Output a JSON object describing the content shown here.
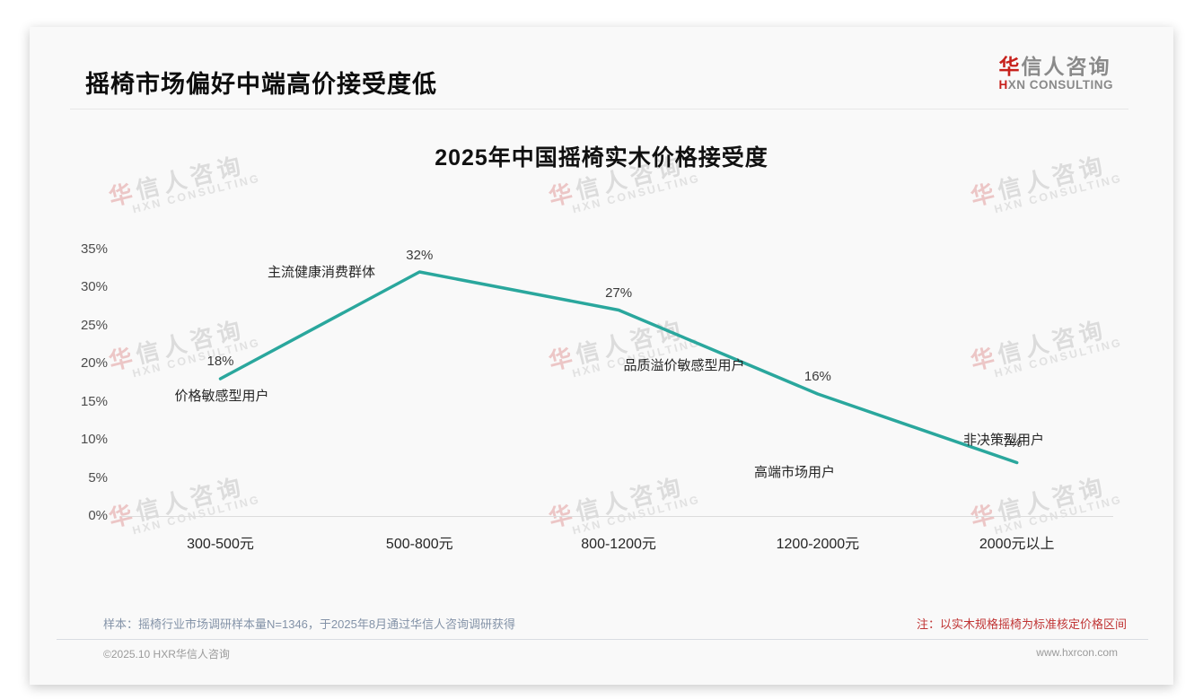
{
  "page": {
    "title": "摇椅市场偏好中端高价接受度低",
    "logo": {
      "cn_first": "华",
      "cn_rest": "信人咨询",
      "en_first": "H",
      "en_rest": "XN CONSULTING"
    },
    "watermark": {
      "cn_first": "华",
      "cn_rest": "信人咨询",
      "en": "HXN CONSULTING"
    },
    "footer": {
      "sample_note": "样本：摇椅行业市场调研样本量N=1346，于2025年8月通过华信人咨询调研获得",
      "price_note": "注：以实木规格摇椅为标准核定价格区间",
      "copyright": "©2025.10 HXR华信人咨询",
      "website": "www.hxrcon.com"
    },
    "colors": {
      "brand_red": "#c7211c",
      "note_red": "#c03434",
      "line_teal": "#2aa79d"
    }
  },
  "chart_data": {
    "type": "line",
    "title": "2025年中国摇椅实木价格接受度",
    "categories": [
      "300-500元",
      "500-800元",
      "800-1200元",
      "1200-2000元",
      "2000元以上"
    ],
    "values": [
      18,
      32,
      27,
      16,
      7
    ],
    "value_labels": [
      "18%",
      "32%",
      "27%",
      "16%",
      "7%"
    ],
    "annotations": [
      "价格敏感型用户",
      "主流健康消费群体",
      "品质溢价敏感型用户",
      "高端市场用户",
      "非决策型用户"
    ],
    "y_ticks": [
      0,
      5,
      10,
      15,
      20,
      25,
      30,
      35
    ],
    "y_tick_labels": [
      "0%",
      "5%",
      "10%",
      "15%",
      "20%",
      "25%",
      "30%",
      "35%"
    ],
    "xlabel": "",
    "ylabel": "",
    "ylim": [
      0,
      35
    ],
    "grid": false,
    "legend": "none",
    "line_color": "#2aa79d"
  }
}
